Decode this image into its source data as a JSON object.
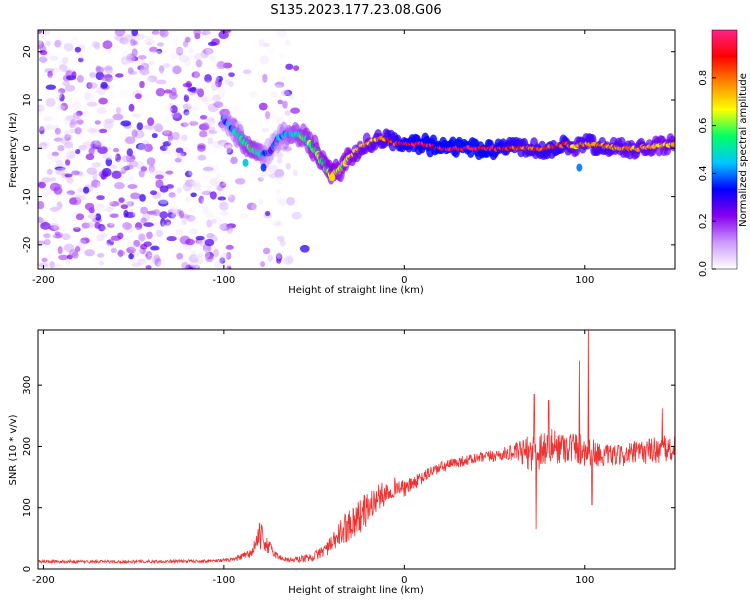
{
  "title": "S135.2023.177.23.08.G06",
  "chart_data": [
    {
      "type": "heatmap",
      "xlabel": "Height of straight line (km)",
      "ylabel": "Frequency (Hz)",
      "xlim": [
        -203,
        150
      ],
      "ylim": [
        -25,
        24.5
      ],
      "xticks": [
        -200,
        -100,
        0,
        100
      ],
      "yticks": [
        -20,
        -10,
        0,
        10,
        20
      ],
      "colorbar": {
        "label": "Normalized spectral amplitude",
        "range": [
          0,
          1
        ],
        "ticks": [
          "0.0",
          "0.2",
          "0.4",
          "0.6",
          "0.8"
        ],
        "tick_values": [
          0,
          0.2,
          0.4,
          0.6,
          0.8
        ],
        "colors": [
          "#ffffff",
          "#cc99ff",
          "#8800ee",
          "#0000ff",
          "#00c8ff",
          "#00ff66",
          "#ffff00",
          "#ff8800",
          "#ff0000",
          "#ff2288"
        ]
      },
      "ridge": {
        "x": [
          -100,
          -95,
          -90,
          -85,
          -80,
          -75,
          -70,
          -65,
          -60,
          -55,
          -50,
          -45,
          -40,
          -38,
          -35,
          -30,
          -25,
          -20,
          -15,
          -10,
          -5,
          0,
          10,
          20,
          40,
          55,
          70,
          80,
          90,
          95,
          100,
          110,
          120,
          130,
          140,
          150
        ],
        "y": [
          6,
          4,
          2,
          0,
          -1,
          -1,
          2,
          3,
          3,
          2,
          0,
          -3,
          -6,
          -5,
          -4,
          -2,
          0,
          1,
          2,
          2,
          1,
          1,
          1,
          0,
          0,
          0,
          0,
          0,
          1,
          0,
          1,
          0.5,
          0,
          0,
          0.5,
          1
        ],
        "amplitude": [
          0.35,
          0.4,
          0.5,
          0.55,
          0.5,
          0.3,
          0.35,
          0.45,
          0.5,
          0.55,
          0.6,
          0.6,
          0.65,
          0.65,
          0.6,
          0.65,
          0.7,
          0.72,
          0.75,
          0.8,
          0.85,
          0.9,
          0.95,
          0.95,
          0.98,
          0.9,
          0.8,
          0.85,
          0.85,
          0.7,
          0.8,
          0.8,
          0.75,
          0.75,
          0.7,
          0.7
        ]
      },
      "noise_region": [
        -203,
        -55
      ]
    },
    {
      "type": "line",
      "xlabel": "Height of straight line (km)",
      "ylabel": "SNR (10 * v/v)",
      "xlim": [
        -203,
        150
      ],
      "ylim": [
        0,
        390
      ],
      "xticks": [
        -200,
        -100,
        0,
        100
      ],
      "yticks": [
        0,
        100,
        200,
        300
      ],
      "color": "#ee3333",
      "x": [
        -203,
        -150,
        -110,
        -95,
        -85,
        -80,
        -75,
        -70,
        -65,
        -60,
        -50,
        -40,
        -35,
        -30,
        -25,
        -20,
        -15,
        -10,
        -5,
        0,
        5,
        10,
        15,
        20,
        30,
        40,
        50,
        60,
        70,
        75,
        80,
        90,
        100,
        110,
        120,
        130,
        140,
        150
      ],
      "y": [
        12,
        12,
        13,
        15,
        25,
        55,
        35,
        20,
        15,
        15,
        20,
        40,
        60,
        75,
        85,
        100,
        115,
        125,
        135,
        130,
        140,
        148,
        160,
        165,
        175,
        180,
        185,
        190,
        190,
        195,
        200,
        200,
        195,
        185,
        185,
        190,
        195,
        195
      ],
      "noise_amp": [
        5,
        5,
        5,
        6,
        15,
        45,
        25,
        10,
        8,
        10,
        15,
        30,
        45,
        55,
        60,
        55,
        45,
        40,
        30,
        25,
        25,
        20,
        20,
        20,
        18,
        18,
        20,
        25,
        60,
        70,
        60,
        55,
        55,
        35,
        35,
        40,
        45,
        45
      ],
      "spikes": [
        {
          "x": 72,
          "y": 285
        },
        {
          "x": 80,
          "y": 275
        },
        {
          "x": 97,
          "y": 340
        },
        {
          "x": 102,
          "y": 390
        },
        {
          "x": 104,
          "y": 105
        },
        {
          "x": 73,
          "y": 65
        },
        {
          "x": 143,
          "y": 262
        }
      ]
    }
  ]
}
